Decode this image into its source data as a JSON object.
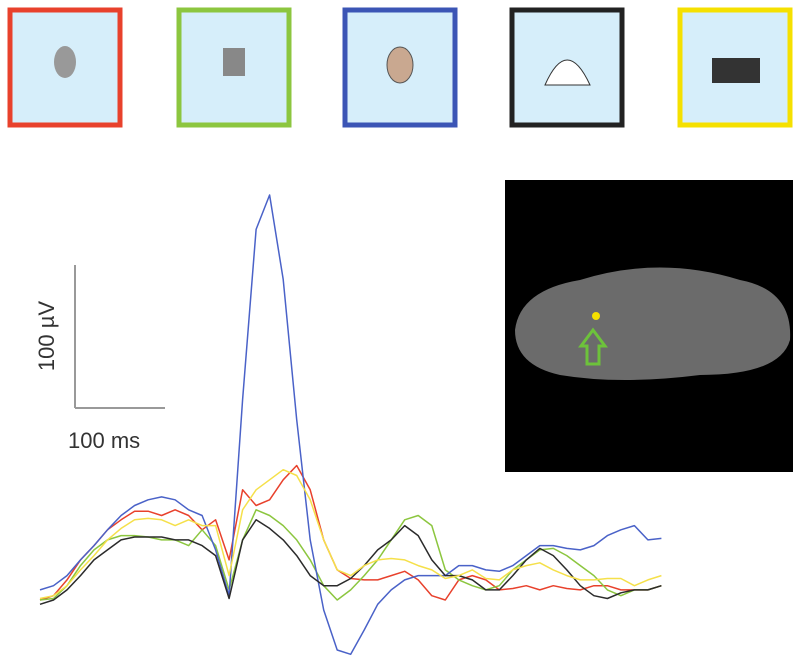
{
  "chart_data": {
    "type": "line",
    "x": [
      0,
      15,
      30,
      45,
      60,
      75,
      90,
      105,
      120,
      135,
      150,
      165,
      180,
      195,
      210,
      225,
      240,
      255,
      270,
      285,
      300,
      315,
      330,
      345,
      360,
      375,
      390,
      405,
      420,
      435,
      450,
      465,
      480,
      495,
      510,
      525,
      540,
      555,
      570,
      585,
      600,
      615,
      630,
      645,
      660,
      675,
      690
    ],
    "xlim": [
      0,
      694
    ],
    "ylim": [
      -45,
      290
    ],
    "series": [
      {
        "color": "#e8412c",
        "values": [
          0,
          3,
          14,
          28,
          38,
          49,
          56,
          62,
          62,
          59,
          63,
          59,
          49,
          56,
          28,
          77,
          66,
          70,
          84,
          94,
          77,
          42,
          21,
          15,
          14,
          14,
          17,
          20,
          14,
          3,
          0,
          14,
          17,
          14,
          7,
          8,
          10,
          7,
          10,
          8,
          7,
          10,
          10,
          7,
          7,
          7,
          10
        ]
      },
      {
        "color": "#8cc63f",
        "values": [
          0,
          1,
          10,
          24,
          35,
          42,
          45,
          45,
          44,
          42,
          42,
          38,
          49,
          38,
          7,
          42,
          63,
          59,
          52,
          42,
          28,
          10,
          0,
          7,
          17,
          28,
          42,
          56,
          59,
          52,
          21,
          14,
          10,
          7,
          10,
          21,
          28,
          35,
          36,
          31,
          24,
          17,
          7,
          3,
          7,
          7,
          10
        ]
      },
      {
        "color": "#4a62c8",
        "values": [
          7,
          10,
          17,
          28,
          38,
          49,
          59,
          66,
          70,
          72,
          70,
          63,
          59,
          35,
          3,
          140,
          259,
          283,
          224,
          126,
          42,
          -7,
          -35,
          -38,
          -21,
          -3,
          7,
          14,
          17,
          17,
          17,
          24,
          24,
          21,
          20,
          24,
          31,
          38,
          38,
          36,
          35,
          38,
          45,
          49,
          52,
          42,
          43
        ]
      },
      {
        "color": "#2b2b2b",
        "values": [
          -3,
          0,
          7,
          17,
          28,
          35,
          42,
          44,
          44,
          44,
          42,
          42,
          38,
          31,
          1,
          42,
          56,
          50,
          42,
          31,
          17,
          10,
          10,
          15,
          24,
          35,
          42,
          52,
          45,
          28,
          17,
          17,
          14,
          7,
          7,
          17,
          28,
          36,
          31,
          21,
          10,
          3,
          1,
          5,
          7,
          7,
          10
        ]
      },
      {
        "color": "#f5e04a",
        "values": [
          1,
          3,
          10,
          21,
          31,
          42,
          50,
          56,
          57,
          56,
          52,
          56,
          52,
          52,
          17,
          63,
          77,
          84,
          91,
          87,
          70,
          42,
          21,
          17,
          24,
          28,
          29,
          28,
          24,
          21,
          15,
          17,
          21,
          15,
          14,
          21,
          24,
          26,
          21,
          17,
          14,
          14,
          15,
          15,
          10,
          14,
          17
        ]
      }
    ],
    "scale_bar": {
      "y_label": "100 µV",
      "x_label": "100 ms"
    }
  }
}
